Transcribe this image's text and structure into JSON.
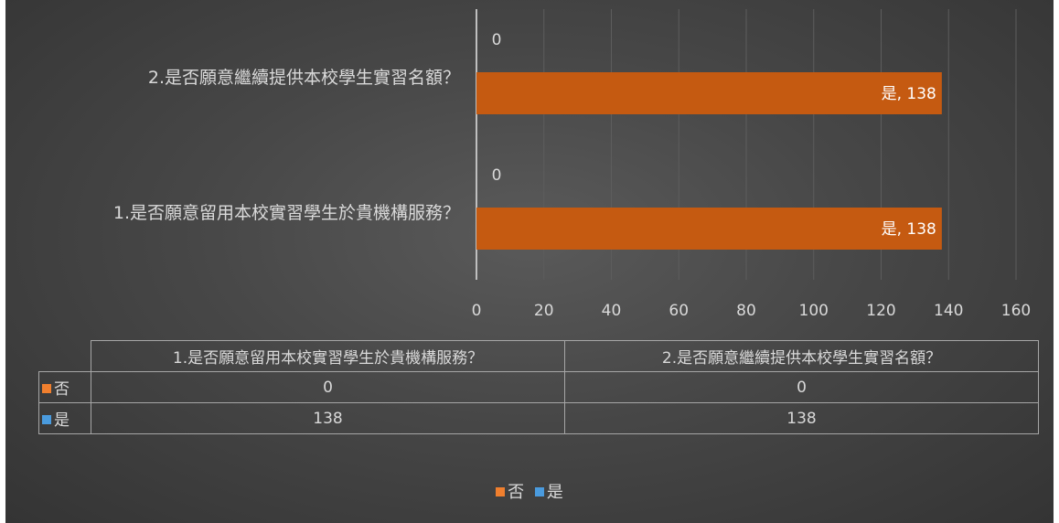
{
  "chart_data": {
    "type": "bar",
    "orientation": "horizontal",
    "categories": [
      "1.是否願意留用本校實習學生於貴機構服務？",
      "2.是否願意繼續提供本校學生實習名額？"
    ],
    "series": [
      {
        "name": "否",
        "values": [
          0,
          0
        ],
        "color": "#f07f2e",
        "data_labels": [
          "0",
          "0"
        ]
      },
      {
        "name": "是",
        "values": [
          138,
          138
        ],
        "color": "#c55a11",
        "data_labels": [
          "是, 138",
          "是, 138"
        ]
      }
    ],
    "xlim": [
      0,
      160
    ],
    "xticks": [
      0,
      20,
      40,
      60,
      80,
      100,
      120,
      140,
      160
    ],
    "grid": true,
    "legend": "bottom",
    "data_table": true
  },
  "table": {
    "headers": [
      "1.是否願意留用本校實習學生於貴機構服務？",
      "2.是否願意繼續提供本校學生實習名額？"
    ],
    "rows": [
      {
        "label": "否",
        "color": "#f07f2e",
        "values": [
          "0",
          "0"
        ]
      },
      {
        "label": "是",
        "color": "#4a9bde",
        "values": [
          "138",
          "138"
        ]
      }
    ]
  },
  "legend": [
    {
      "label": "否",
      "color": "#f07f2e"
    },
    {
      "label": "是",
      "color": "#4a9bde"
    }
  ]
}
